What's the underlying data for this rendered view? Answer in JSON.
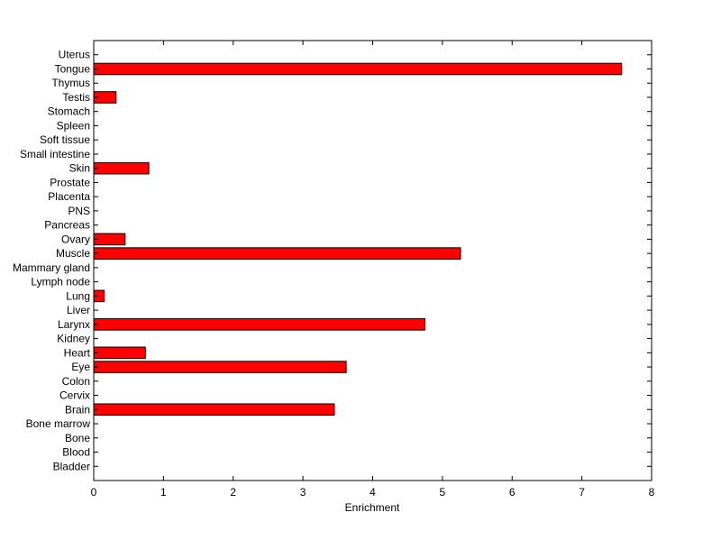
{
  "chart_data": {
    "type": "bar",
    "orientation": "horizontal",
    "xlabel": "Enrichment",
    "ylabel": "",
    "xlim": [
      0,
      8
    ],
    "x_ticks": [
      "0",
      "1",
      "2",
      "3",
      "4",
      "5",
      "6",
      "7",
      "8"
    ],
    "grid": false,
    "bar_color": "#ff0000",
    "categories": [
      "Bladder",
      "Blood",
      "Bone",
      "Bone marrow",
      "Brain",
      "Cervix",
      "Colon",
      "Eye",
      "Heart",
      "Kidney",
      "Larynx",
      "Liver",
      "Lung",
      "Lymph node",
      "Mammary gland",
      "Muscle",
      "Ovary",
      "Pancreas",
      "PNS",
      "Placenta",
      "Prostate",
      "Skin",
      "Small intestine",
      "Soft tissue",
      "Spleen",
      "Stomach",
      "Testis",
      "Thymus",
      "Tongue",
      "Uterus"
    ],
    "values": [
      0,
      0,
      0,
      0,
      3.45,
      0,
      0,
      3.62,
      0.74,
      0,
      4.75,
      0,
      0.15,
      0,
      0,
      5.26,
      0.45,
      0,
      0,
      0,
      0,
      0.79,
      0,
      0,
      0,
      0,
      0.32,
      0,
      7.57,
      0
    ]
  }
}
